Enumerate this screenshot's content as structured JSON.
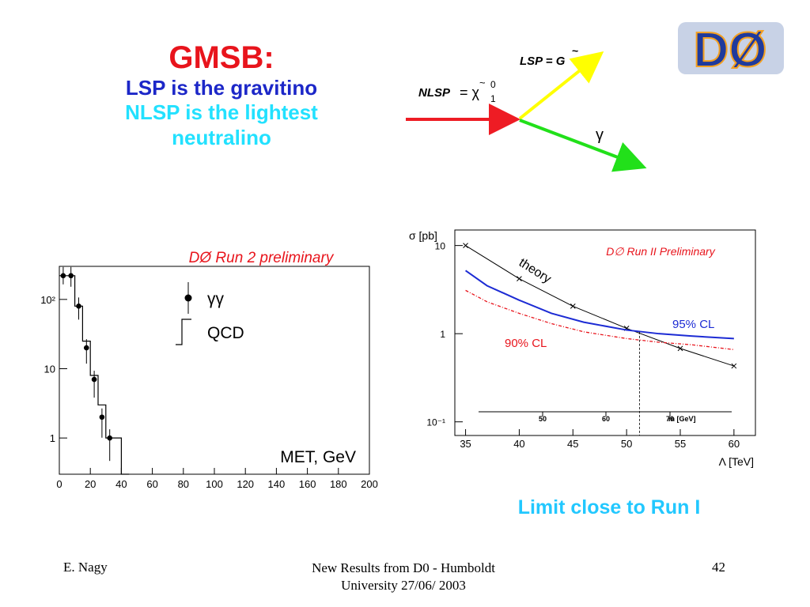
{
  "title": {
    "main": "GMSB:",
    "line1": "LSP is the gravitino",
    "line2": "NLSP is the lightest",
    "line3": "neutralino"
  },
  "diagram": {
    "lsp_label": "LSP = G",
    "nlsp_label": "NLSP",
    "nlsp_eq": "= χ",
    "nlsp_sup": "0",
    "nlsp_sub": "1",
    "gamma_label": "γ",
    "colors": {
      "nlsp": "#ee1c24",
      "lsp": "#ffff00",
      "gamma": "#22e01a"
    }
  },
  "logo": {
    "text": "DØ"
  },
  "chart_data": [
    {
      "type": "scatter",
      "title": "DØ Run 2 preliminary",
      "xlabel": "MET, GeV",
      "ylabel": "",
      "xlim": [
        0,
        200
      ],
      "ylim": [
        0.3,
        300
      ],
      "log_y": true,
      "x_ticks": [
        "0",
        "20",
        "40",
        "60",
        "80",
        "100",
        "120",
        "140",
        "160",
        "180",
        "200"
      ],
      "y_ticks": [
        {
          "v": 100,
          "label": "10²"
        },
        {
          "v": 10,
          "label": "10"
        },
        {
          "v": 1,
          "label": "1"
        }
      ],
      "legend": [
        "γγ",
        "QCD"
      ],
      "series": [
        {
          "name": "γγ",
          "x": [
            2.5,
            7.5,
            12.5,
            17.5,
            22.5,
            27.5,
            32.5
          ],
          "y": [
            220,
            220,
            80,
            20,
            7,
            2,
            1
          ]
        },
        {
          "name": "QCD",
          "edges": [
            0,
            5,
            10,
            15,
            20,
            25,
            30,
            35,
            40,
            45
          ],
          "values": [
            220,
            220,
            80,
            25,
            8,
            3,
            1,
            1,
            0.3
          ]
        }
      ]
    },
    {
      "type": "line",
      "title": "D∅ Run II Preliminary",
      "xlabel": "Λ [TeV]",
      "ylabel": "σ [pb]",
      "top_axis_label": "m [GeV]",
      "top_ticks": [
        "50",
        "60",
        "70"
      ],
      "xlim": [
        34,
        62
      ],
      "ylim": [
        0.07,
        15
      ],
      "log_y": true,
      "x_ticks": [
        "35",
        "40",
        "45",
        "50",
        "55",
        "60"
      ],
      "y_ticks": [
        {
          "v": 10,
          "label": "10"
        },
        {
          "v": 1,
          "label": "1"
        },
        {
          "v": 0.1,
          "label": "10⁻¹"
        }
      ],
      "series": [
        {
          "name": "theory",
          "x": [
            35,
            40,
            45,
            50,
            55,
            60
          ],
          "y": [
            10,
            4.2,
            2.05,
            1.15,
            0.68,
            0.43
          ],
          "color": "#000000"
        },
        {
          "name": "95% CL",
          "x": [
            35,
            37,
            40,
            43,
            46,
            50,
            53,
            56,
            60
          ],
          "y": [
            5.2,
            3.5,
            2.4,
            1.7,
            1.35,
            1.1,
            1.0,
            0.94,
            0.88
          ],
          "color": "#1c2bd4"
        },
        {
          "name": "90% CL",
          "x": [
            35,
            37,
            40,
            43,
            46,
            50,
            53,
            56,
            60
          ],
          "y": [
            3.1,
            2.3,
            1.7,
            1.3,
            1.05,
            0.88,
            0.8,
            0.75,
            0.66
          ],
          "color": "#e8141c"
        }
      ],
      "crossing_x": 51.2
    }
  ],
  "limit_text": "Limit close to Run I",
  "footer": {
    "author": "E. Nagy",
    "center_line1": "New Results from D0 - Humboldt",
    "center_line2": "University  27/06/ 2003",
    "page": "42"
  }
}
